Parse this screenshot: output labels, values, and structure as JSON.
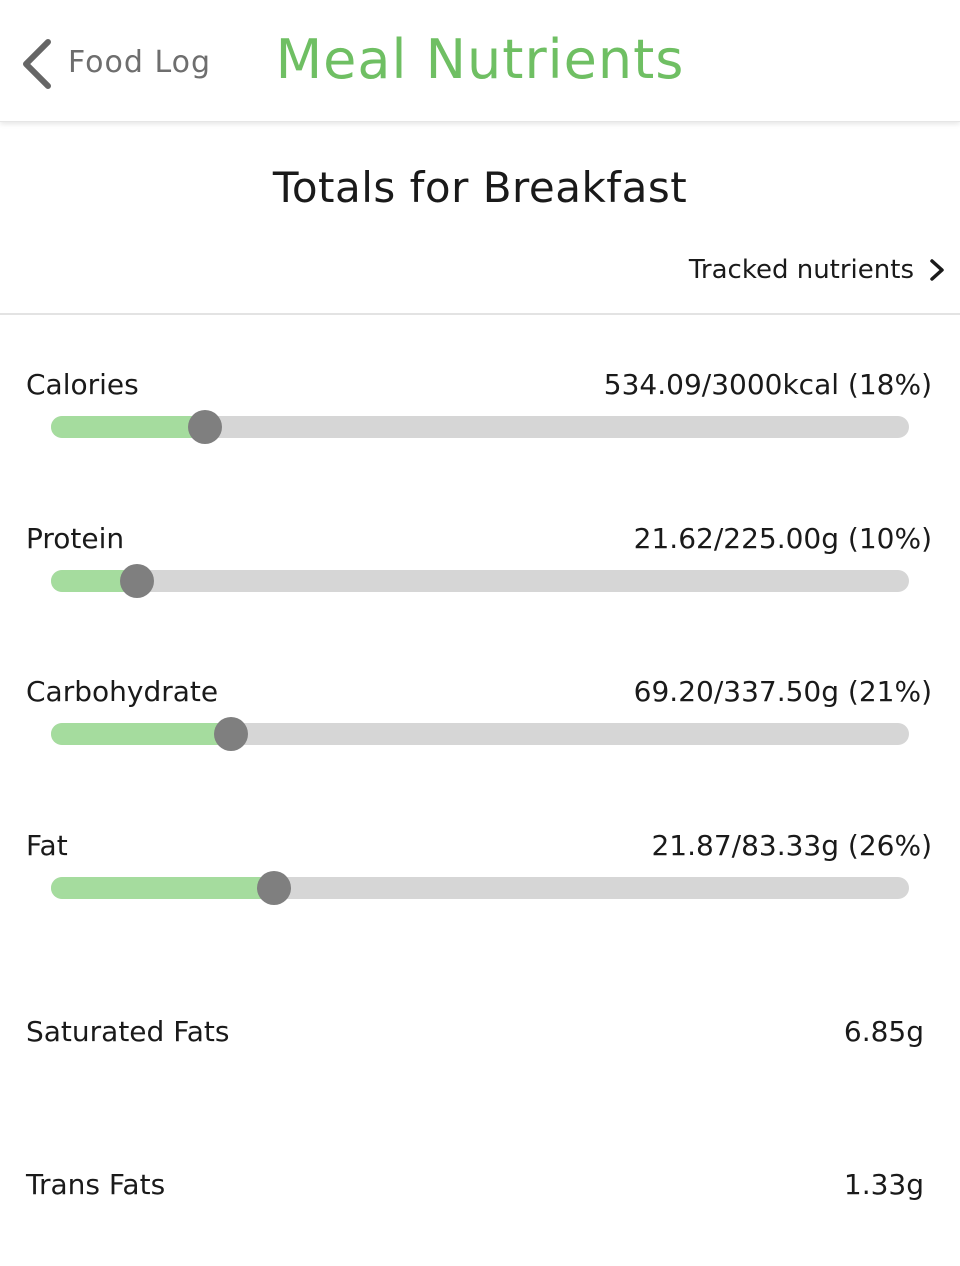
{
  "header": {
    "back_label": "Food Log",
    "back_icon": "chevron-left-icon",
    "title": "Meal Nutrients"
  },
  "totals_title": "Totals for Breakfast",
  "tracked_link": {
    "label": "Tracked nutrients",
    "icon": "chevron-right-icon"
  },
  "colors": {
    "brand": "#6fbf63",
    "progress_fill": "#a5dc9e",
    "progress_track": "#d6d6d6",
    "thumb": "#7f7f7f"
  },
  "nutrients": [
    {
      "name": "Calories",
      "value_text": "534.09/3000kcal (18%)",
      "fraction": 0.18
    },
    {
      "name": "Protein",
      "value_text": "21.62/225.00g (10%)",
      "fraction": 0.1
    },
    {
      "name": "Carbohydrate",
      "value_text": "69.20/337.50g (21%)",
      "fraction": 0.21
    },
    {
      "name": "Fat",
      "value_text": "21.87/83.33g (26%)",
      "fraction": 0.26
    }
  ],
  "extras": [
    {
      "name": "Saturated Fats",
      "value": "6.85g"
    },
    {
      "name": "Trans Fats",
      "value": "1.33g"
    }
  ]
}
